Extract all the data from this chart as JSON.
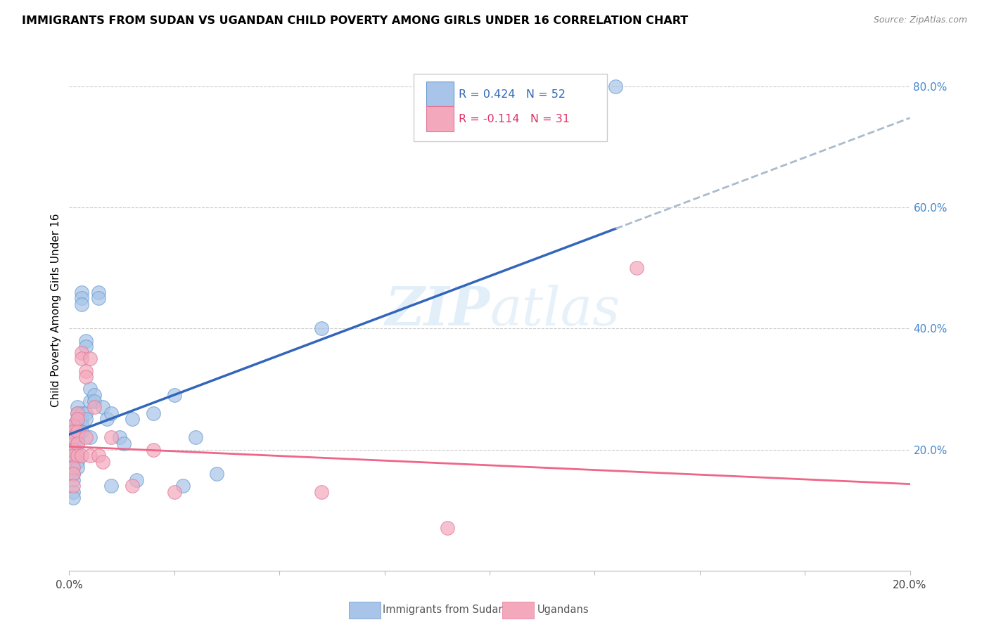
{
  "title": "IMMIGRANTS FROM SUDAN VS UGANDAN CHILD POVERTY AMONG GIRLS UNDER 16 CORRELATION CHART",
  "source": "Source: ZipAtlas.com",
  "ylabel": "Child Poverty Among Girls Under 16",
  "legend_label_1": "Immigrants from Sudan",
  "legend_label_2": "Ugandans",
  "r1": "0.424",
  "n1": "52",
  "r2": "-0.114",
  "n2": "31",
  "color_blue_fill": "#a8c4e8",
  "color_pink_fill": "#f4a8bc",
  "color_blue_edge": "#6699cc",
  "color_pink_edge": "#dd7799",
  "color_trend_blue": "#3366bb",
  "color_trend_pink": "#ee6688",
  "color_dashed": "#aabbcc",
  "blue_x": [
    0.001,
    0.001,
    0.001,
    0.001,
    0.001,
    0.001,
    0.001,
    0.001,
    0.001,
    0.001,
    0.002,
    0.002,
    0.002,
    0.002,
    0.002,
    0.002,
    0.002,
    0.002,
    0.002,
    0.003,
    0.003,
    0.003,
    0.003,
    0.003,
    0.003,
    0.003,
    0.004,
    0.004,
    0.004,
    0.004,
    0.005,
    0.005,
    0.005,
    0.006,
    0.006,
    0.007,
    0.007,
    0.008,
    0.009,
    0.01,
    0.01,
    0.012,
    0.013,
    0.015,
    0.016,
    0.02,
    0.025,
    0.027,
    0.03,
    0.035,
    0.06,
    0.13
  ],
  "blue_y": [
    0.23,
    0.24,
    0.21,
    0.2,
    0.19,
    0.18,
    0.16,
    0.15,
    0.13,
    0.12,
    0.27,
    0.26,
    0.25,
    0.24,
    0.22,
    0.21,
    0.19,
    0.18,
    0.17,
    0.46,
    0.45,
    0.44,
    0.26,
    0.25,
    0.24,
    0.23,
    0.38,
    0.37,
    0.26,
    0.25,
    0.3,
    0.28,
    0.22,
    0.29,
    0.28,
    0.46,
    0.45,
    0.27,
    0.25,
    0.26,
    0.14,
    0.22,
    0.21,
    0.25,
    0.15,
    0.26,
    0.29,
    0.14,
    0.22,
    0.16,
    0.4,
    0.8
  ],
  "pink_x": [
    0.001,
    0.001,
    0.001,
    0.001,
    0.001,
    0.001,
    0.001,
    0.001,
    0.002,
    0.002,
    0.002,
    0.002,
    0.002,
    0.003,
    0.003,
    0.003,
    0.004,
    0.004,
    0.004,
    0.005,
    0.005,
    0.006,
    0.007,
    0.008,
    0.01,
    0.015,
    0.02,
    0.025,
    0.06,
    0.09,
    0.135
  ],
  "pink_y": [
    0.24,
    0.23,
    0.22,
    0.2,
    0.19,
    0.17,
    0.16,
    0.14,
    0.26,
    0.25,
    0.23,
    0.21,
    0.19,
    0.36,
    0.35,
    0.19,
    0.33,
    0.32,
    0.22,
    0.35,
    0.19,
    0.27,
    0.19,
    0.18,
    0.22,
    0.14,
    0.2,
    0.13,
    0.13,
    0.07,
    0.5
  ],
  "trend_blue_x0": 0.0,
  "trend_blue_y0": 0.225,
  "trend_blue_x1": 0.13,
  "trend_blue_y1": 0.565,
  "trend_dash_x0": 0.13,
  "trend_dash_y0": 0.565,
  "trend_dash_x1": 0.2,
  "trend_dash_y1": 0.748,
  "trend_pink_x0": 0.0,
  "trend_pink_y0": 0.205,
  "trend_pink_x1": 0.2,
  "trend_pink_y1": 0.143,
  "xlim": [
    0.0,
    0.2
  ],
  "ylim": [
    0.0,
    0.86
  ]
}
